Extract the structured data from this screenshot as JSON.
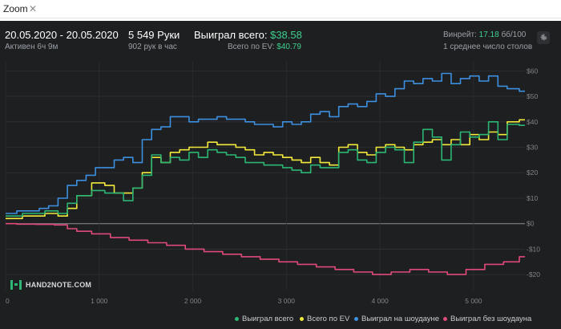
{
  "tab": {
    "title": "Zoom",
    "close_glyph": "✕"
  },
  "header": {
    "date_range": "20.05.2020 - 20.05.2020",
    "active": "Активен 6ч 9м",
    "hands": "5 549 Руки",
    "hands_per_hour": "902 рук в час",
    "won_label": "Выиграл всего:",
    "won_value": "$38.58",
    "ev_label": "Всего по EV:",
    "ev_value": "$40.79",
    "winrate_label": "Винрейт:",
    "winrate_value": "17.18",
    "winrate_unit": "бб/100",
    "tables": "1 среднее число столов"
  },
  "logo": {
    "text": "HAND2NOTE.COM"
  },
  "colors": {
    "green": "#2bb673",
    "yellow": "#f2ea3a",
    "blue": "#3d8fe0",
    "red": "#e04a7a",
    "background": "#1e1f21"
  },
  "chart_data": {
    "type": "line",
    "xlim": [
      0,
      5549
    ],
    "ylim": [
      -25,
      62
    ],
    "x_ticks": [
      0,
      1000,
      2000,
      3000,
      4000,
      5000
    ],
    "x_tick_labels": [
      "0",
      "1 000",
      "2 000",
      "3 000",
      "4 000",
      "5 000"
    ],
    "y_ticks": [
      -20,
      -10,
      0,
      10,
      20,
      30,
      40,
      50,
      60
    ],
    "y_tick_labels": [
      "-$20",
      "-$10",
      "$0",
      "$10",
      "$20",
      "$30",
      "$40",
      "$50",
      "$60"
    ],
    "grid": true,
    "legend_position": "bottom-right",
    "series": [
      {
        "name": "Выиграл всего",
        "color": "#2bb673",
        "x": [
          0,
          300,
          500,
          600,
          700,
          800,
          1000,
          1100,
          1200,
          1300,
          1400,
          1500,
          1600,
          1700,
          1800,
          1900,
          2000,
          2100,
          2200,
          2300,
          2400,
          2500,
          2600,
          2700,
          2800,
          2900,
          3000,
          3100,
          3200,
          3300,
          3400,
          3500,
          3600,
          3700,
          3800,
          3900,
          4000,
          4100,
          4200,
          4300,
          4400,
          4500,
          4600,
          4700,
          4800,
          4900,
          5000,
          5100,
          5200,
          5300,
          5400,
          5549
        ],
        "y": [
          3,
          4,
          5,
          4,
          8,
          11,
          13,
          12,
          12,
          9,
          14,
          19,
          27,
          24,
          26,
          25,
          28,
          26,
          29,
          28,
          27,
          26,
          24,
          24,
          23,
          23,
          22,
          21,
          20,
          23,
          22,
          22,
          28,
          29,
          25,
          24,
          28,
          30,
          29,
          24,
          32,
          37,
          34,
          25,
          31,
          36,
          34,
          35,
          40,
          33,
          39,
          38.6
        ]
      },
      {
        "name": "Всего по EV",
        "color": "#f2ea3a",
        "x": [
          0,
          300,
          500,
          600,
          700,
          800,
          1000,
          1100,
          1200,
          1300,
          1400,
          1500,
          1600,
          1700,
          1800,
          1900,
          2000,
          2100,
          2200,
          2300,
          2400,
          2500,
          2600,
          2700,
          2800,
          2900,
          3000,
          3100,
          3200,
          3300,
          3400,
          3500,
          3600,
          3700,
          3800,
          3900,
          4000,
          4100,
          4200,
          4300,
          4400,
          4500,
          4600,
          4700,
          4800,
          4900,
          5000,
          5100,
          5200,
          5300,
          5400,
          5549
        ],
        "y": [
          2,
          3,
          4,
          3,
          6,
          11,
          16,
          15,
          12,
          12,
          14,
          20,
          26,
          24,
          28,
          29,
          30,
          30,
          32,
          31,
          31,
          30,
          29,
          27,
          28,
          27,
          26,
          25,
          24,
          26,
          24,
          23,
          30,
          31,
          28,
          27,
          30,
          31,
          30,
          29,
          31,
          32,
          33,
          31,
          33,
          31,
          35,
          33,
          36,
          35,
          40,
          40.8
        ]
      },
      {
        "name": "Выиграл на шоудауне",
        "color": "#3d8fe0",
        "x": [
          0,
          200,
          300,
          400,
          500,
          600,
          700,
          800,
          900,
          1000,
          1100,
          1200,
          1300,
          1400,
          1500,
          1600,
          1700,
          1800,
          1900,
          2000,
          2100,
          2200,
          2300,
          2400,
          2500,
          2600,
          2700,
          2800,
          2900,
          3000,
          3100,
          3200,
          3300,
          3400,
          3500,
          3600,
          3700,
          3800,
          3900,
          4000,
          4100,
          4200,
          4300,
          4400,
          4500,
          4600,
          4700,
          4800,
          4900,
          5000,
          5100,
          5200,
          5300,
          5400,
          5549
        ],
        "y": [
          4,
          5,
          5,
          6,
          7,
          10,
          15,
          17,
          19,
          22,
          22,
          25,
          26,
          24,
          33,
          37,
          38,
          42,
          42,
          40,
          41,
          41,
          42,
          41,
          41,
          40,
          39,
          39,
          38,
          40,
          39,
          40,
          43,
          44,
          42,
          46,
          47,
          46,
          48,
          51,
          50,
          53,
          56,
          55,
          57,
          56,
          59,
          55,
          57,
          58,
          56,
          58,
          54,
          53,
          52
        ]
      },
      {
        "name": "Выиграл без шоудауна",
        "color": "#e04a7a",
        "x": [
          0,
          200,
          400,
          600,
          700,
          800,
          1000,
          1200,
          1400,
          1600,
          1800,
          2000,
          2200,
          2400,
          2600,
          2800,
          3000,
          3200,
          3400,
          3600,
          3800,
          4000,
          4200,
          4400,
          4600,
          4800,
          5000,
          5200,
          5400,
          5549
        ],
        "y": [
          0,
          -0.2,
          -0.3,
          -0.5,
          -2,
          -3,
          -4,
          -5.5,
          -6.5,
          -7.5,
          -8.5,
          -10,
          -11,
          -12,
          -13,
          -14,
          -15,
          -16,
          -17,
          -18,
          -19,
          -20,
          -19,
          -18,
          -19,
          -20,
          -18,
          -16,
          -15,
          -13
        ]
      }
    ]
  },
  "legend": [
    {
      "label": "Выиграл всего",
      "color": "#2bb673"
    },
    {
      "label": "Всего по EV",
      "color": "#f2ea3a"
    },
    {
      "label": "Выиграл на шоудауне",
      "color": "#3d8fe0"
    },
    {
      "label": "Выиграл без шоудауна",
      "color": "#e04a7a"
    }
  ]
}
